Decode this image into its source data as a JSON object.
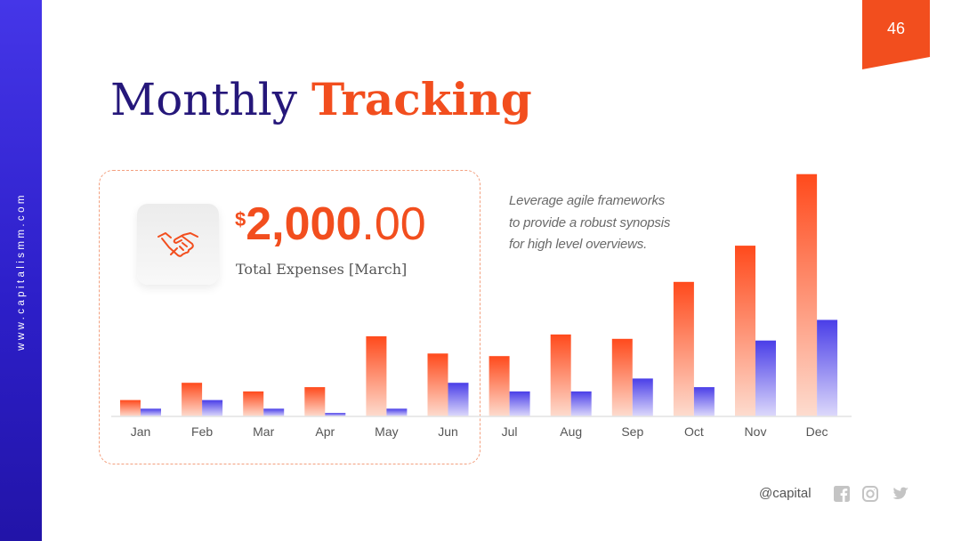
{
  "sidebar": {
    "site_url": "www.capitalismm.com"
  },
  "page": {
    "number": "46"
  },
  "title": {
    "main": "Monthly",
    "accent": "Tracking"
  },
  "summary": {
    "currency": "$",
    "amount_integer": "2,000",
    "amount_decimal": ".00",
    "label": "Total Expenses [March]",
    "icon": "handshake-icon"
  },
  "description": "Leverage agile frameworks to provide a robust synopsis for high level overviews.",
  "footer": {
    "handle": "@capital",
    "social_icons": [
      "facebook-icon",
      "instagram-icon",
      "twitter-icon"
    ]
  },
  "colors": {
    "accent": "#f24e1e",
    "primary": "#25177a",
    "sidebar": "#3a2ae0",
    "series_orange": "#ff5a2a",
    "series_blue": "#5a4ef0"
  },
  "chart_data": {
    "type": "bar",
    "categories": [
      "Jan",
      "Feb",
      "Mar",
      "Apr",
      "May",
      "Jun",
      "Jul",
      "Aug",
      "Sep",
      "Oct",
      "Nov",
      "Dec"
    ],
    "series": [
      {
        "values": [
          19,
          39,
          29,
          34,
          93,
          73,
          70,
          95,
          90,
          156,
          198,
          281
        ]
      },
      {
        "values": [
          9,
          19,
          9,
          4,
          9,
          39,
          29,
          29,
          44,
          34,
          88,
          112
        ]
      }
    ],
    "title": "",
    "xlabel": "",
    "ylabel": "",
    "ylim": [
      0,
      290
    ],
    "grid": false,
    "legend": "none"
  }
}
